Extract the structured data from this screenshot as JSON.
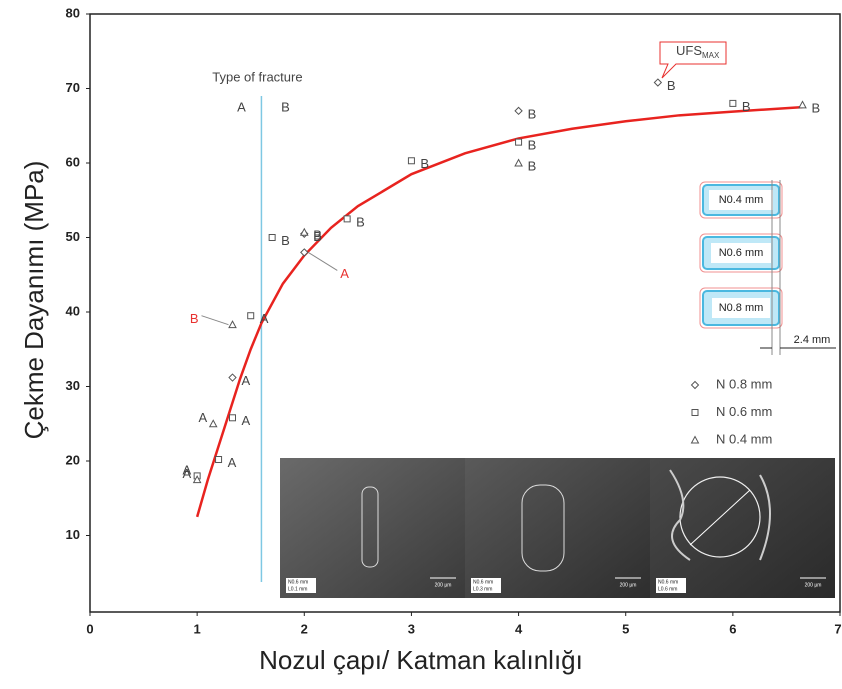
{
  "chart_data": {
    "type": "scatter",
    "x_label": "Nozul çapı/ Katman kalınlığı",
    "y_label": "Çekme Dayanımı (MPa)",
    "xlim": [
      0,
      7
    ],
    "xticks": [
      0,
      1,
      2,
      3,
      4,
      5,
      6,
      7
    ],
    "ylim": [
      0,
      80
    ],
    "yticks": [
      10,
      20,
      30,
      40,
      50,
      60,
      70,
      80
    ],
    "marker_color": "#555555",
    "series": [
      {
        "name": "N 0.8 mm",
        "marker": "diamond",
        "x": [
          1.33,
          2.0,
          2.0,
          4.0,
          5.3
        ],
        "values": [
          31.2,
          50.5,
          48,
          67,
          70.8
        ],
        "labels": [
          "A",
          "B",
          "A",
          "B",
          "B"
        ],
        "label_colors": [
          "#444444",
          "#444444",
          "#e8312f",
          "#444444",
          "#444444"
        ]
      },
      {
        "name": "N 0.6 mm",
        "marker": "square",
        "x": [
          1.0,
          1.2,
          1.33,
          1.5,
          1.7,
          2.4,
          3.0,
          4.0,
          6.0
        ],
        "values": [
          18,
          20.2,
          25.8,
          39.5,
          50,
          52.5,
          60.3,
          62.8,
          68
        ],
        "labels": [
          "A",
          "A",
          "A",
          "A",
          "B",
          "B",
          "B",
          "B",
          "B"
        ],
        "label_colors": [
          "#444444",
          "#444444",
          "#444444",
          "#444444",
          "#444444",
          "#444444",
          "#444444",
          "#444444",
          "#444444"
        ]
      },
      {
        "name": "N 0.4 mm",
        "marker": "triangle",
        "x": [
          1.0,
          1.15,
          1.33,
          2.0,
          4.0,
          6.65
        ],
        "values": [
          17.5,
          25,
          38.3,
          50.7,
          60,
          67.8
        ],
        "labels": [
          "A",
          "A",
          "B",
          "B",
          "B",
          "B"
        ],
        "label_colors": [
          "#444444",
          "#444444",
          "#e8312f",
          "#444444",
          "#444444",
          "#444444"
        ]
      }
    ],
    "fit": {
      "color": "#e8231f",
      "x": [
        1.0,
        1.1,
        1.2,
        1.3,
        1.4,
        1.5,
        1.6,
        1.8,
        2.0,
        2.25,
        2.5,
        3.0,
        3.5,
        4.0,
        4.5,
        5.0,
        5.5,
        6.0,
        6.65
      ],
      "values": [
        12.5,
        17.5,
        22,
        26.5,
        31,
        35,
        38.5,
        43.8,
        47.6,
        51.3,
        54.2,
        58.5,
        61.3,
        63.3,
        64.6,
        65.6,
        66.4,
        66.9,
        67.5
      ]
    },
    "fracture": {
      "x": 1.6,
      "color": "#7ec8e3",
      "label": "Type of fracture",
      "left": "A",
      "right": "B"
    },
    "ufs": {
      "text": "UFS",
      "subscript": "MAX",
      "color": "#e8312f"
    },
    "nozzles": {
      "boxes": [
        "N0.4 mm",
        "N0.6 mm",
        "N0.8 mm"
      ],
      "dimension": "2.4 mm"
    },
    "panels": [
      {
        "label": "N0.6 mm",
        "sub": "L0.1 mm",
        "scale": "200 µm"
      },
      {
        "label": "N0.6 mm",
        "sub": "L0.3 mm",
        "scale": "200 µm"
      },
      {
        "label": "N0.6 mm",
        "sub": "L0.6 mm",
        "scale": "200 µm"
      }
    ]
  }
}
